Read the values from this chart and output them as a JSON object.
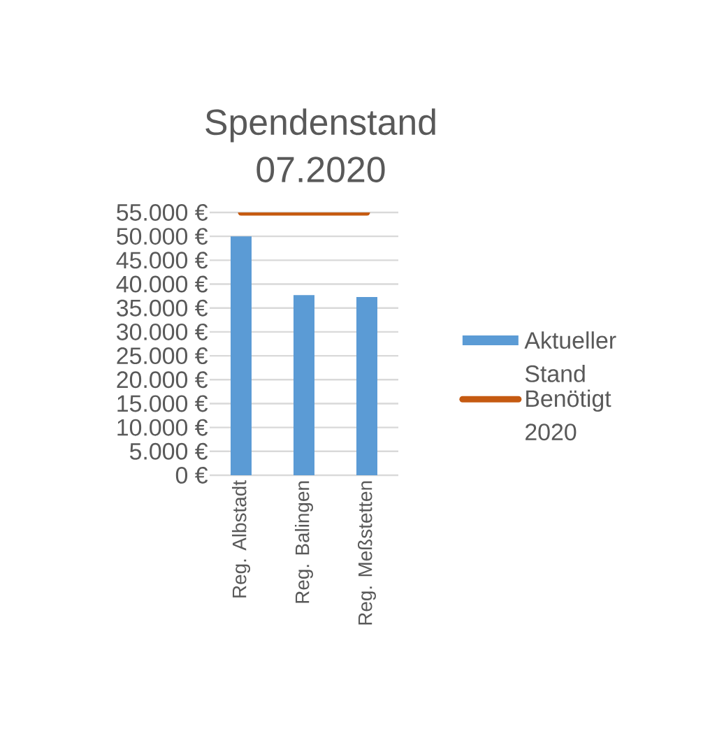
{
  "chart_data": {
    "type": "bar",
    "title": "Spendenstand 07.2020",
    "categories": [
      "Reg. Albstadt",
      "Reg. Balingen",
      "Reg. Meßstetten"
    ],
    "series": [
      {
        "name": "Aktueller Stand",
        "color": "#5b9bd5",
        "values": [
          50000,
          37700,
          37300
        ]
      },
      {
        "name": "Benötigt 2020",
        "type": "line",
        "color": "#c55a11",
        "values": [
          55000,
          55000,
          55000
        ]
      }
    ],
    "ylim": [
      0,
      55000
    ],
    "yticks": [
      {
        "value": 0,
        "label": "0 €"
      },
      {
        "value": 5000,
        "label": "5.000 €"
      },
      {
        "value": 10000,
        "label": "10.000 €"
      },
      {
        "value": 15000,
        "label": "15.000 €"
      },
      {
        "value": 20000,
        "label": "20.000 €"
      },
      {
        "value": 25000,
        "label": "25.000 €"
      },
      {
        "value": 30000,
        "label": "30.000 €"
      },
      {
        "value": 35000,
        "label": "35.000 €"
      },
      {
        "value": 40000,
        "label": "40.000 €"
      },
      {
        "value": 45000,
        "label": "45.000 €"
      },
      {
        "value": 50000,
        "label": "50.000 €"
      },
      {
        "value": 55000,
        "label": "55.000 €"
      }
    ],
    "grid": "y",
    "legend": "right"
  }
}
